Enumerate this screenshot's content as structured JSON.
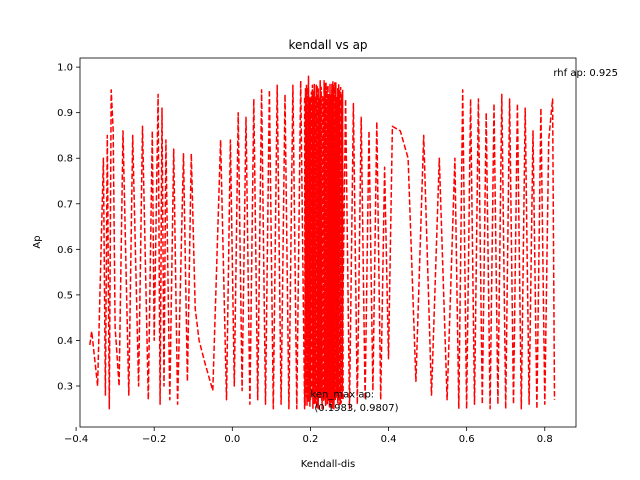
{
  "chart_data": {
    "type": "line",
    "title": "kendall vs ap",
    "xlabel": "Kendall-dis",
    "ylabel": "Ap",
    "xlim": [
      -0.39,
      0.88
    ],
    "ylim": [
      0.21,
      1.02
    ],
    "xticks": [
      -0.4,
      -0.2,
      0.0,
      0.2,
      0.4,
      0.6,
      0.8
    ],
    "xtick_labels": [
      "−0.4",
      "−0.2",
      "0.0",
      "0.2",
      "0.4",
      "0.6",
      "0.8"
    ],
    "yticks": [
      0.3,
      0.4,
      0.5,
      0.6,
      0.7,
      0.8,
      0.9,
      1.0
    ],
    "ytick_labels": [
      "0.3",
      "0.4",
      "0.5",
      "0.6",
      "0.7",
      "0.8",
      "0.9",
      "1.0"
    ],
    "grid": false,
    "series": [
      {
        "style": "dashed",
        "color": "#ff0000",
        "x": [
          -0.365,
          -0.36,
          -0.345,
          -0.33,
          -0.325,
          -0.32,
          -0.315,
          -0.31,
          -0.305,
          -0.3,
          -0.29,
          -0.28,
          -0.265,
          -0.255,
          -0.24,
          -0.23,
          -0.215,
          -0.205,
          -0.2,
          -0.19,
          -0.185,
          -0.18,
          -0.175,
          -0.17,
          -0.16,
          -0.15,
          -0.14,
          -0.125,
          -0.115,
          -0.105,
          -0.095,
          -0.085,
          -0.07,
          -0.05,
          -0.03,
          -0.015,
          -0.005,
          0.005,
          0.015,
          0.025,
          0.035,
          0.045,
          0.055,
          0.065,
          0.075,
          0.085,
          0.095,
          0.105,
          0.115,
          0.125,
          0.135,
          0.145,
          0.155,
          0.165,
          0.175,
          0.185,
          0.195,
          0.2,
          0.205,
          0.21,
          0.215,
          0.22,
          0.225,
          0.23,
          0.235,
          0.24,
          0.245,
          0.25,
          0.255,
          0.26,
          0.265,
          0.27,
          0.275,
          0.28,
          0.29,
          0.3,
          0.31,
          0.32,
          0.33,
          0.34,
          0.35,
          0.36,
          0.37,
          0.38,
          0.39,
          0.4,
          0.41,
          0.43,
          0.45,
          0.47,
          0.49,
          0.51,
          0.53,
          0.55,
          0.57,
          0.58,
          0.59,
          0.6,
          0.61,
          0.62,
          0.63,
          0.64,
          0.65,
          0.66,
          0.67,
          0.68,
          0.69,
          0.7,
          0.71,
          0.72,
          0.73,
          0.74,
          0.75,
          0.76,
          0.77,
          0.78,
          0.79,
          0.8,
          0.81,
          0.82,
          0.825
        ],
        "y": [
          0.39,
          0.42,
          0.3,
          0.8,
          0.28,
          0.85,
          0.25,
          0.95,
          0.86,
          0.43,
          0.3,
          0.86,
          0.28,
          0.85,
          0.3,
          0.87,
          0.27,
          0.86,
          0.4,
          0.94,
          0.26,
          0.91,
          0.3,
          0.84,
          0.27,
          0.82,
          0.26,
          0.81,
          0.31,
          0.81,
          0.47,
          0.4,
          0.35,
          0.29,
          0.84,
          0.27,
          0.84,
          0.3,
          0.9,
          0.29,
          0.89,
          0.26,
          0.93,
          0.27,
          0.95,
          0.26,
          0.95,
          0.25,
          0.96,
          0.26,
          0.94,
          0.25,
          0.96,
          0.25,
          0.97,
          0.25,
          0.98,
          0.27,
          0.96,
          0.26,
          0.96,
          0.25,
          0.97,
          0.25,
          0.97,
          0.26,
          0.96,
          0.25,
          0.95,
          0.25,
          0.96,
          0.26,
          0.94,
          0.27,
          0.93,
          0.25,
          0.92,
          0.26,
          0.89,
          0.27,
          0.86,
          0.29,
          0.88,
          0.27,
          0.78,
          0.36,
          0.87,
          0.86,
          0.8,
          0.31,
          0.85,
          0.28,
          0.8,
          0.27,
          0.8,
          0.25,
          0.95,
          0.25,
          0.93,
          0.26,
          0.93,
          0.26,
          0.9,
          0.25,
          0.92,
          0.26,
          0.94,
          0.25,
          0.93,
          0.26,
          0.92,
          0.25,
          0.91,
          0.26,
          0.86,
          0.25,
          0.91,
          0.26,
          0.84,
          0.93,
          0.27
        ]
      }
    ],
    "annotations": [
      {
        "text": "rhf ap: 0.925",
        "x": 0.822,
        "y": 0.98
      },
      {
        "text": "ken_max ap:",
        "x": 0.2,
        "y": 0.275
      },
      {
        "text": "(0.1983, 0.9807)",
        "x": 0.21,
        "y": 0.245
      }
    ]
  }
}
